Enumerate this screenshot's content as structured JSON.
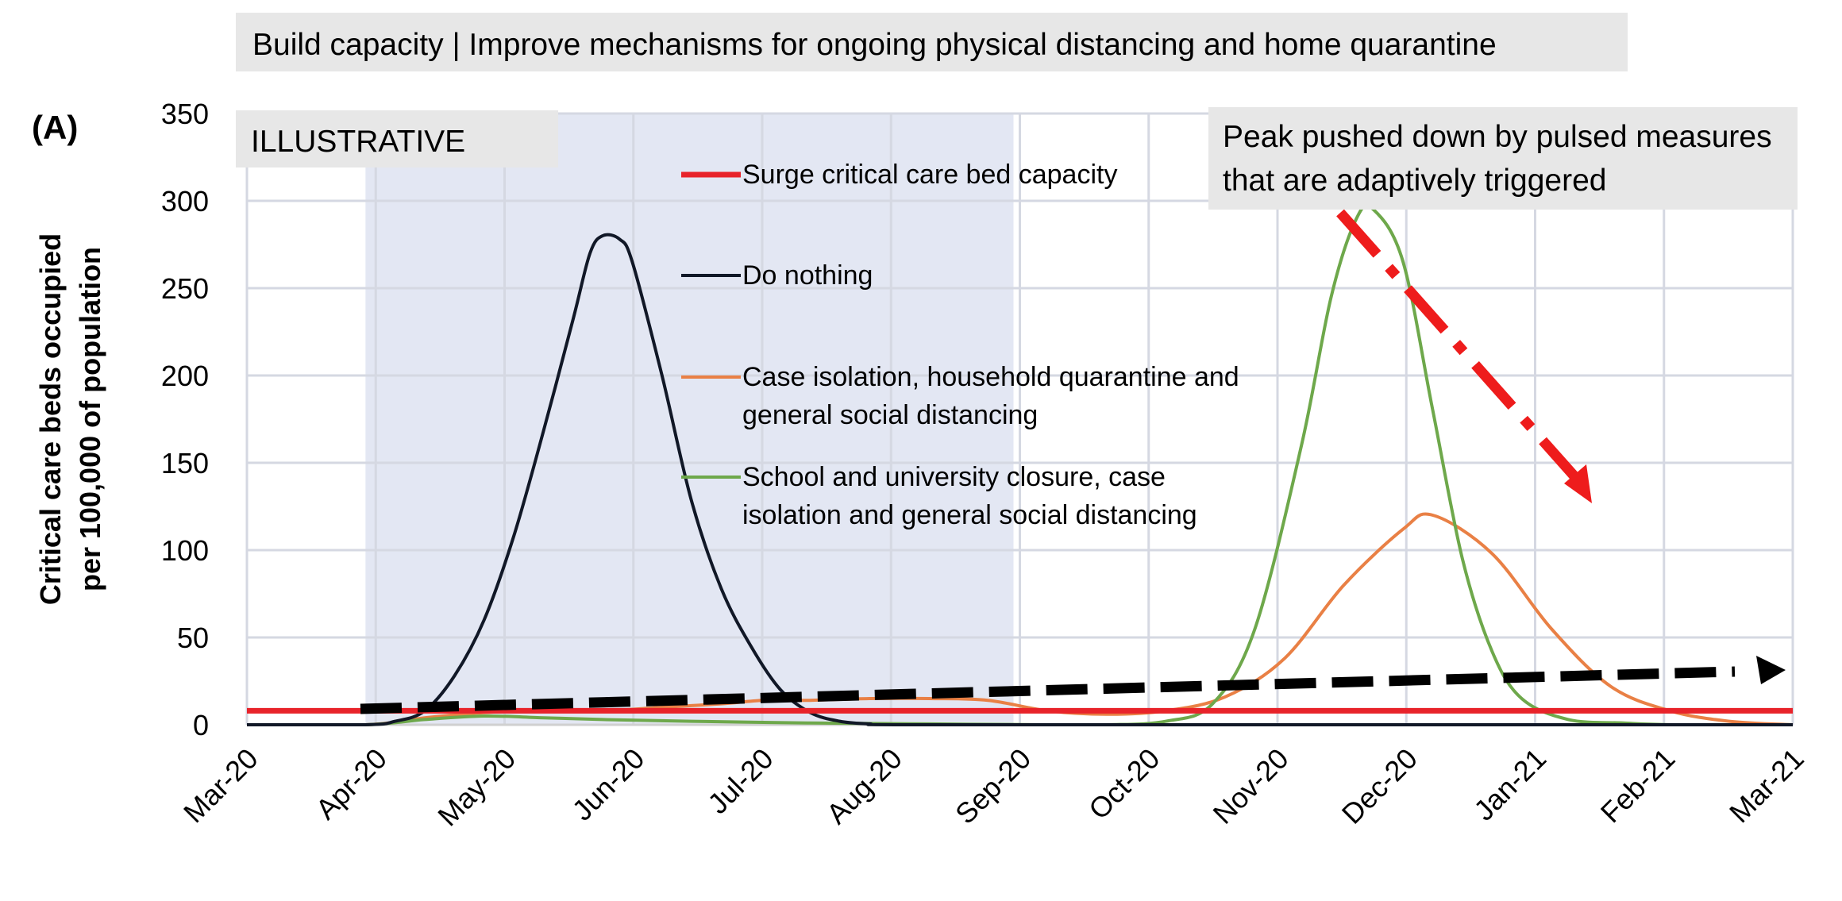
{
  "header_banner": "Build capacity | Improve mechanisms for ongoing physical distancing and home quarantine",
  "panel_label": "(A)",
  "illustrative_tag": "ILLUSTRATIVE",
  "peak_annotation": [
    "Peak pushed down by pulsed measures",
    "that are adaptively triggered"
  ],
  "colors": {
    "shaded_period": "#e3e7f3",
    "banner_bg": "#e7e7e7",
    "gridline": "#d5d8e2",
    "capacity": "#e8232a",
    "do_nothing": "#111827",
    "case_isolation": "#e98045",
    "school_closure": "#6ea84b",
    "arrow_red": "#ee1c1c",
    "arrow_black": "#000000"
  },
  "chart_data": {
    "type": "line",
    "title": "",
    "ylabel": [
      "Critical care beds occupied",
      "per 100,000 of population"
    ],
    "xlabel": "",
    "x_ticks": [
      "Mar-20",
      "Apr-20",
      "May-20",
      "Jun-20",
      "Jul-20",
      "Aug-20",
      "Sep-20",
      "Oct-20",
      "Nov-20",
      "Dec-20",
      "Jan-21",
      "Feb-21",
      "Mar-21"
    ],
    "x_range": [
      "2020-03-01",
      "2021-03-01"
    ],
    "ylim": [
      0,
      350
    ],
    "y_ticks": [
      0,
      50,
      100,
      150,
      200,
      250,
      300,
      350
    ],
    "grid": true,
    "shaded_period": [
      "2020-03-29",
      "2020-08-29"
    ],
    "legend": [
      {
        "label": [
          "Surge critical care bed capacity"
        ],
        "color": "#e8232a"
      },
      {
        "label": [
          "Do nothing"
        ],
        "color": "#111827"
      },
      {
        "label": [
          "Case isolation, household quarantine and",
          "general social distancing"
        ],
        "color": "#e98045"
      },
      {
        "label": [
          "School and university closure, case",
          "isolation and general social distancing"
        ],
        "color": "#6ea84b"
      }
    ],
    "series": [
      {
        "name": "Surge critical care bed capacity",
        "color": "#e8232a",
        "x": [
          "2020-03-01",
          "2021-03-01"
        ],
        "y": [
          8,
          8
        ]
      },
      {
        "name": "Do nothing",
        "color": "#111827",
        "x": [
          "2020-03-01",
          "2020-03-29",
          "2020-04-05",
          "2020-04-12",
          "2020-04-19",
          "2020-04-26",
          "2020-05-03",
          "2020-05-10",
          "2020-05-17",
          "2020-05-21",
          "2020-05-24",
          "2020-05-28",
          "2020-05-31",
          "2020-06-07",
          "2020-06-14",
          "2020-06-21",
          "2020-06-28",
          "2020-07-05",
          "2020-07-12",
          "2020-07-19",
          "2020-07-26",
          "2020-08-01",
          "2020-10-01",
          "2021-03-01"
        ],
        "y": [
          0,
          0,
          2,
          8,
          28,
          60,
          108,
          168,
          232,
          270,
          280,
          278,
          265,
          200,
          128,
          78,
          45,
          20,
          7,
          2,
          0.5,
          0,
          0,
          0
        ]
      },
      {
        "name": "Case isolation, household quarantine and general social distancing",
        "color": "#e98045",
        "x": [
          "2020-03-01",
          "2020-03-29",
          "2020-04-12",
          "2020-04-26",
          "2020-05-10",
          "2020-05-24",
          "2020-06-07",
          "2020-06-21",
          "2020-07-01",
          "2020-07-12",
          "2020-07-26",
          "2020-08-09",
          "2020-08-23",
          "2020-09-06",
          "2020-09-20",
          "2020-10-04",
          "2020-10-18",
          "2020-11-01",
          "2020-11-15",
          "2020-11-29",
          "2020-12-06",
          "2020-12-20",
          "2021-01-03",
          "2021-01-17",
          "2021-01-31",
          "2021-02-14",
          "2021-03-01"
        ],
        "y": [
          0,
          0,
          4,
          7,
          8,
          8,
          10,
          12,
          14,
          14,
          15,
          15,
          14,
          8,
          6,
          8,
          16,
          38,
          80,
          112,
          120,
          98,
          55,
          22,
          8,
          2,
          0
        ]
      },
      {
        "name": "School and university closure, case isolation and general social distancing",
        "color": "#6ea84b",
        "x": [
          "2020-03-01",
          "2020-03-29",
          "2020-04-12",
          "2020-04-26",
          "2020-05-10",
          "2020-05-24",
          "2020-06-14",
          "2020-07-12",
          "2020-08-09",
          "2020-09-06",
          "2020-09-20",
          "2020-10-04",
          "2020-10-15",
          "2020-10-25",
          "2020-11-05",
          "2020-11-12",
          "2020-11-18",
          "2020-11-22",
          "2020-11-29",
          "2020-12-06",
          "2020-12-13",
          "2020-12-20",
          "2020-12-27",
          "2021-01-07",
          "2021-01-20",
          "2021-02-01",
          "2021-03-01"
        ],
        "y": [
          0,
          0,
          3,
          5,
          4,
          3,
          2,
          1,
          0.5,
          0,
          0,
          2,
          12,
          55,
          160,
          245,
          290,
          295,
          265,
          180,
          95,
          42,
          15,
          3,
          1,
          0,
          0
        ]
      }
    ]
  }
}
